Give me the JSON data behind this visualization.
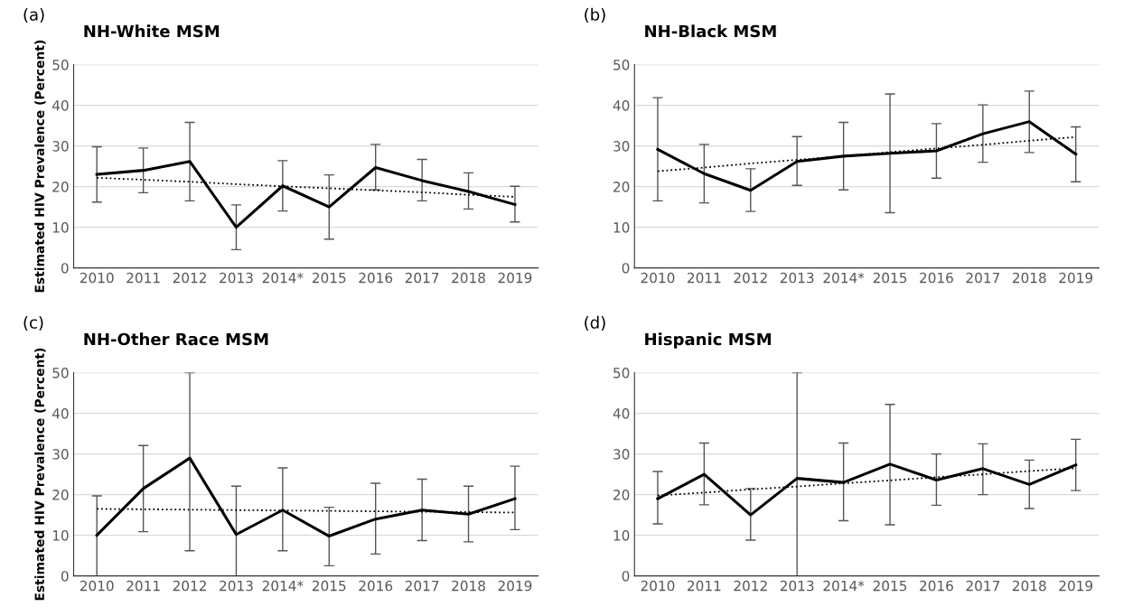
{
  "chart_data": [
    {
      "type": "line",
      "title": "NH-White MSM",
      "ylabel": "Estimated HIV Prevalence (Percent)",
      "annotations": [
        "(a)"
      ],
      "categories": [
        "2010",
        "2011",
        "2012",
        "2013",
        "2014*",
        "2015",
        "2016",
        "2017",
        "2018",
        "2019"
      ],
      "ylim": [
        0,
        50
      ],
      "yticks": [
        0,
        10,
        20,
        30,
        40,
        50
      ],
      "grid": "y",
      "marker": "none",
      "series": [
        {
          "color": "#000000",
          "line_style": "solid",
          "values": [
            23,
            24,
            26.2,
            10,
            20.2,
            15,
            24.7,
            21.5,
            18.8,
            15.6
          ],
          "errors": [
            [
              16.2,
              29.8
            ],
            [
              18.5,
              29.5
            ],
            [
              16.5,
              35.8
            ],
            [
              4.5,
              15.5
            ],
            [
              14,
              26.4
            ],
            [
              7.1,
              22.9
            ],
            [
              19.2,
              30.4
            ],
            [
              16.5,
              26.7
            ],
            [
              14.5,
              23.4
            ],
            [
              11.3,
              20.1
            ]
          ]
        },
        {
          "color": "#000000",
          "line_style": "dotted",
          "values": [
            22.2,
            21.7,
            21.2,
            20.6,
            20.1,
            19.6,
            19.1,
            18.6,
            18.0,
            17.5
          ]
        }
      ]
    },
    {
      "type": "line",
      "title": "NH-Black MSM",
      "annotations": [
        "(b)"
      ],
      "categories": [
        "2010",
        "2011",
        "2012",
        "2013",
        "2014*",
        "2015",
        "2016",
        "2017",
        "2018",
        "2019"
      ],
      "ylim": [
        0,
        50
      ],
      "yticks": [
        0,
        10,
        20,
        30,
        40,
        50
      ],
      "grid": "y",
      "marker": "none",
      "series": [
        {
          "color": "#000000",
          "line_style": "solid",
          "values": [
            29.2,
            23.2,
            19.1,
            26.2,
            27.5,
            28.2,
            28.8,
            33,
            36,
            28
          ],
          "errors": [
            [
              16.5,
              41.9
            ],
            [
              16,
              30.4
            ],
            [
              13.9,
              24.4
            ],
            [
              20.3,
              32.3
            ],
            [
              19.2,
              35.8
            ],
            [
              13.6,
              42.8
            ],
            [
              22.1,
              35.5
            ],
            [
              26,
              40.1
            ],
            [
              28.4,
              43.5
            ],
            [
              21.2,
              34.7
            ]
          ]
        },
        {
          "color": "#000000",
          "line_style": "dotted",
          "values": [
            23.8,
            24.7,
            25.7,
            26.6,
            27.5,
            28.5,
            29.4,
            30.3,
            31.3,
            32.2
          ]
        }
      ]
    },
    {
      "type": "line",
      "title": "NH-Other Race MSM",
      "ylabel": "Estimated HIV Prevalence (Percent)",
      "annotations": [
        "(c)"
      ],
      "categories": [
        "2010",
        "2011",
        "2012",
        "2013",
        "2014*",
        "2015",
        "2016",
        "2017",
        "2018",
        "2019"
      ],
      "ylim": [
        0,
        50
      ],
      "yticks": [
        0,
        10,
        20,
        30,
        40,
        50
      ],
      "grid": "y",
      "marker": "none",
      "series": [
        {
          "color": "#000000",
          "line_style": "solid",
          "values": [
            10,
            21.5,
            29,
            10.2,
            16.2,
            9.8,
            14,
            16.2,
            15.2,
            19
          ],
          "errors": [
            [
              0,
              19.7
            ],
            [
              10.9,
              32.1
            ],
            [
              6.2,
              50
            ],
            [
              0,
              22.1
            ],
            [
              6.2,
              26.6
            ],
            [
              2.5,
              16.9
            ],
            [
              5.4,
              22.8
            ],
            [
              8.7,
              23.8
            ],
            [
              8.4,
              22.1
            ],
            [
              11.4,
              27
            ]
          ]
        },
        {
          "color": "#000000",
          "line_style": "dotted",
          "values": [
            16.5,
            16.4,
            16.3,
            16.2,
            16.1,
            16.0,
            15.9,
            15.8,
            15.7,
            15.6
          ]
        }
      ]
    },
    {
      "type": "line",
      "title": "Hispanic MSM",
      "annotations": [
        "(d)"
      ],
      "categories": [
        "2010",
        "2011",
        "2012",
        "2013",
        "2014*",
        "2015",
        "2016",
        "2017",
        "2018",
        "2019"
      ],
      "ylim": [
        0,
        50
      ],
      "yticks": [
        0,
        10,
        20,
        30,
        40,
        50
      ],
      "grid": "y",
      "marker": "none",
      "series": [
        {
          "color": "#000000",
          "line_style": "solid",
          "values": [
            19,
            25,
            15,
            24,
            23,
            27.5,
            23.6,
            26.4,
            22.5,
            27.3
          ],
          "errors": [
            [
              12.8,
              25.7
            ],
            [
              17.5,
              32.7
            ],
            [
              8.8,
              21.5
            ],
            [
              0,
              50
            ],
            [
              13.6,
              32.7
            ],
            [
              12.6,
              42.2
            ],
            [
              17.4,
              30
            ],
            [
              20,
              32.5
            ],
            [
              16.6,
              28.5
            ],
            [
              21,
              33.6
            ]
          ]
        },
        {
          "color": "#000000",
          "line_style": "dotted",
          "values": [
            19.8,
            20.5,
            21.3,
            22.0,
            22.8,
            23.5,
            24.3,
            25.0,
            25.8,
            26.5
          ]
        }
      ]
    }
  ]
}
